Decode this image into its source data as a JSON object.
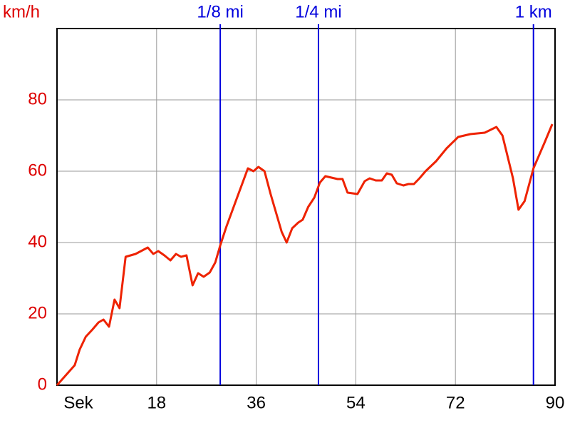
{
  "chart_data": {
    "type": "line",
    "y_label": "km/h",
    "x_label": "Sek",
    "x": [
      0,
      3.2,
      4.1,
      5.2,
      6.4,
      7.5,
      8.4,
      9.4,
      10.4,
      11.3,
      12.4,
      14.2,
      16.4,
      17.4,
      18.3,
      19.4,
      20.5,
      21.5,
      22.4,
      23.4,
      24.5,
      25.5,
      26.5,
      27.6,
      28.6,
      29.5,
      30.6,
      32.4,
      34.5,
      35.5,
      36.4,
      37.5,
      38.6,
      40.6,
      41.5,
      42.5,
      43.6,
      44.4,
      45.4,
      46.5,
      47.5,
      48.5,
      49.6,
      50.7,
      51.6,
      52.5,
      54.3,
      55.6,
      56.5,
      57.6,
      58.7,
      59.6,
      60.5,
      61.4,
      62.6,
      63.5,
      64.5,
      65.5,
      66.6,
      68.5,
      70.4,
      72.5,
      74.7,
      77.3,
      79.4,
      80.5,
      82.4,
      83.4,
      84.5,
      86.1,
      88.1,
      89.5
    ],
    "series": [
      {
        "color": "#ee2200",
        "values": [
          0,
          5.6,
          10,
          13.6,
          15.6,
          17.6,
          18.4,
          16.4,
          24,
          21.6,
          36,
          36.8,
          38.6,
          36.8,
          37.6,
          36.4,
          35,
          36.8,
          36,
          36.4,
          28,
          31.4,
          30.4,
          31.6,
          34.4,
          39.2,
          44.4,
          52,
          60.8,
          60,
          61.2,
          60,
          53.6,
          43,
          40,
          44,
          45.6,
          46.4,
          50,
          52.6,
          56.8,
          58.6,
          58.2,
          57.8,
          57.8,
          54,
          53.6,
          57.2,
          58,
          57.4,
          57.4,
          59.4,
          59,
          56.6,
          56,
          56.4,
          56.4,
          58,
          60,
          62.8,
          66.4,
          69.6,
          70.4,
          70.8,
          72.4,
          70,
          58,
          49.2,
          51.6,
          60.8,
          68,
          73.2
        ]
      }
    ],
    "xlim": [
      0,
      90
    ],
    "xticks": [
      18,
      36,
      54,
      72,
      90
    ],
    "ylim": [
      0,
      100
    ],
    "yticks": [
      0,
      20,
      40,
      60,
      80
    ],
    "grid": true,
    "tick_color": "#dd0000",
    "markers": {
      "color": "#0000dd",
      "items": [
        {
          "x": 29.5,
          "label": "1/8 mi"
        },
        {
          "x": 47.25,
          "label": "1/4 mi"
        },
        {
          "x": 86.1,
          "label": "1 km"
        }
      ]
    }
  }
}
